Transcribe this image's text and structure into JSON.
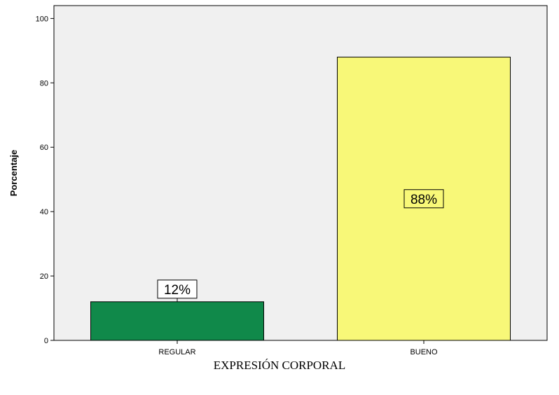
{
  "chart_data": {
    "type": "bar",
    "categories": [
      "REGULAR",
      "BUENO"
    ],
    "values": [
      12,
      88
    ],
    "data_labels": [
      "12%",
      "88%"
    ],
    "colors": [
      "#10894a",
      "#f8f878"
    ],
    "title": "",
    "xlabel": "EXPRESIÓN CORPORAL",
    "ylabel": "Porcentaje",
    "ylim": [
      0,
      104
    ],
    "yticks": [
      "0",
      "20",
      "40",
      "60",
      "80",
      "100"
    ],
    "grid": false,
    "plot_background": "#f0f0f0"
  }
}
